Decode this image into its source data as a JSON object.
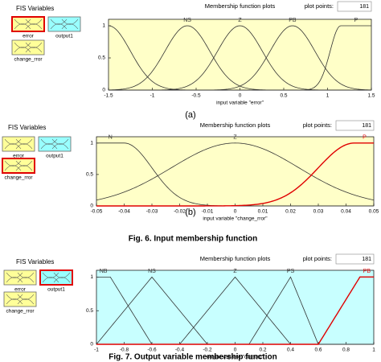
{
  "fis_panels": [
    {
      "title": "FIS Variables",
      "variables": [
        "error",
        "output1",
        "change_rror"
      ],
      "selected": 0
    },
    {
      "title": "FIS Variables",
      "variables": [
        "error",
        "output1",
        "change_rror"
      ],
      "selected": 2
    },
    {
      "title": "FIS Variables",
      "variables": [
        "error",
        "output1",
        "change_rror"
      ],
      "selected": 1
    }
  ],
  "chart_data": [
    {
      "type": "line",
      "title": "Membership function plots",
      "plot_points_label": "plot points:",
      "plot_points": 181,
      "xlabel": "input variable \"error\"",
      "xlim": [
        -1.5,
        1.5
      ],
      "xticks": [
        -1.5,
        -1,
        -0.5,
        0,
        0.5,
        1,
        1.5
      ],
      "ylim": [
        0,
        1.1
      ],
      "yticks": [
        0,
        0.5,
        1
      ],
      "background": "#ffffc8",
      "series": [
        {
          "name": null,
          "color": "#333333",
          "mf": "gauss2mf",
          "params": [
            0.25,
            -2,
            0.25,
            -1.5
          ]
        },
        {
          "name": "NS",
          "color": "#333333",
          "mf": "gaussmf",
          "params": [
            0.255,
            -0.6
          ]
        },
        {
          "name": "Z",
          "color": "#333333",
          "mf": "gaussmf",
          "params": [
            0.255,
            0
          ]
        },
        {
          "name": "PB",
          "color": "#333333",
          "mf": "gaussmf",
          "params": [
            0.255,
            0.6
          ]
        },
        {
          "name": "P",
          "color": "#333333",
          "mf": "gauss2mf",
          "params": [
            0.12,
            1.15,
            0.1,
            2
          ]
        }
      ]
    },
    {
      "type": "line",
      "title": "Membership function plots",
      "plot_points_label": "plot points:",
      "plot_points": 181,
      "xlabel": "input variable \"change_rror\"",
      "xlim": [
        -0.05,
        0.05
      ],
      "xticks": [
        -0.05,
        -0.04,
        -0.03,
        -0.02,
        -0.01,
        0,
        0.01,
        0.02,
        0.03,
        0.04,
        0.05
      ],
      "ylim": [
        0,
        1.1
      ],
      "yticks": [
        0,
        0.5,
        1
      ],
      "background": "#ffffc8",
      "series": [
        {
          "name": "N",
          "color": "#333333",
          "mf": "gauss2mf",
          "params": [
            0.01,
            -0.06,
            0.01,
            -0.04
          ]
        },
        {
          "name": "Z",
          "color": "#333333",
          "mf": "gaussmf",
          "params": [
            0.023,
            0
          ]
        },
        {
          "name": "P",
          "color": "#e00000",
          "mf": "gauss2mf",
          "params": [
            0.013,
            0.043,
            0.013,
            0.06
          ]
        }
      ]
    },
    {
      "type": "line",
      "title": "Membership function plots",
      "plot_points_label": "plot points:",
      "plot_points": 181,
      "xlabel": "output variable \"output1\"",
      "xlim": [
        -1,
        1
      ],
      "xticks": [
        -1,
        -0.8,
        -0.6,
        -0.4,
        -0.2,
        0,
        0.2,
        0.4,
        0.6,
        0.8,
        1
      ],
      "ylim": [
        0,
        1.1
      ],
      "yticks": [
        0,
        0.5,
        1
      ],
      "background": "#c8ffff",
      "series": [
        {
          "name": "NB",
          "color": "#333333",
          "mf": "trapmf",
          "params": [
            -1.2,
            -1,
            -0.9,
            -0.6
          ]
        },
        {
          "name": "NS",
          "color": "#333333",
          "mf": "trimf",
          "params": [
            -1,
            -0.6,
            -0.2
          ]
        },
        {
          "name": "Z",
          "color": "#333333",
          "mf": "trimf",
          "params": [
            -0.4,
            0,
            0.4
          ]
        },
        {
          "name": "PS",
          "color": "#333333",
          "mf": "trimf",
          "params": [
            0.1,
            0.4,
            0.6
          ]
        },
        {
          "name": "PB",
          "color": "#e00000",
          "mf": "trapmf",
          "params": [
            0.6,
            0.9,
            1,
            1.2
          ]
        }
      ]
    }
  ],
  "captions": {
    "a": "(a)",
    "b": "(b)",
    "fig6": "Fig. 6. Input membership function",
    "fig7": "Fig. 7. Output variable membership function"
  }
}
